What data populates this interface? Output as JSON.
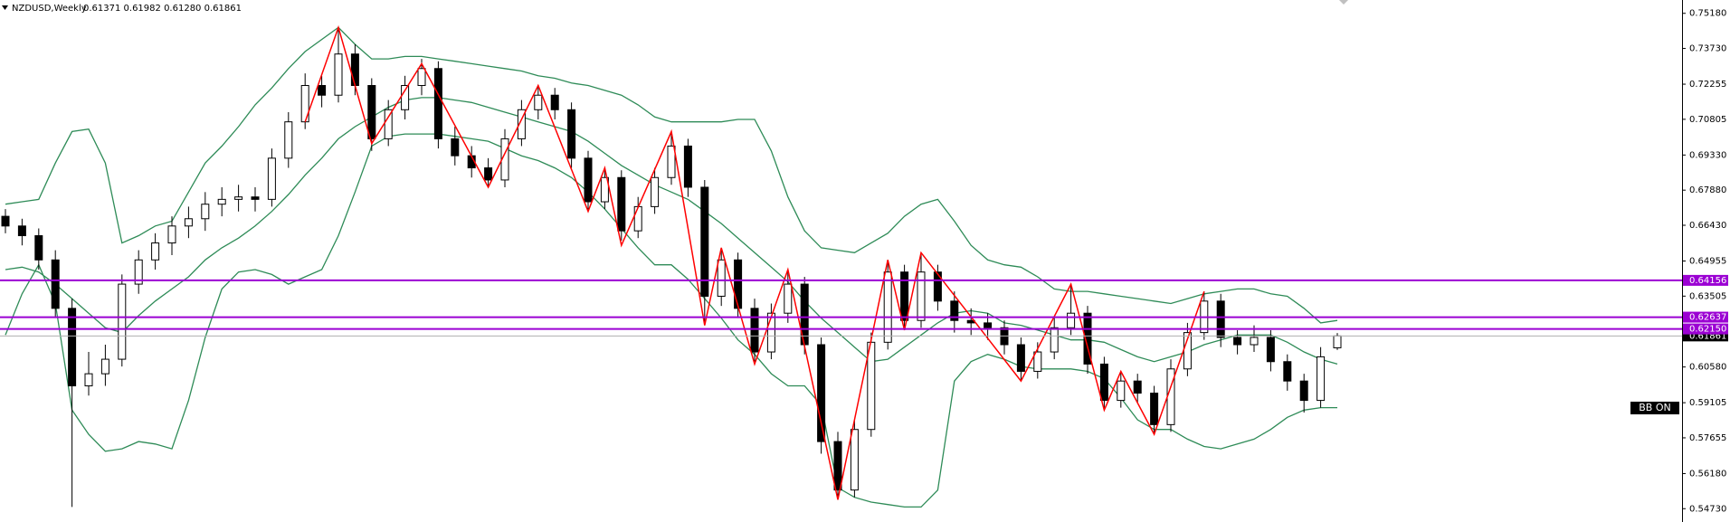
{
  "header": {
    "symbol": "NZDUSD,Weekly",
    "ohlc": "0.61371 0.61982 0.61280 0.61861"
  },
  "chart_data": {
    "type": "candlestick",
    "categories": [
      null,
      null,
      null,
      null,
      null,
      null,
      null,
      null,
      null,
      null,
      null,
      null,
      null,
      null,
      null,
      null,
      null,
      null,
      null,
      null,
      null,
      null,
      null,
      null,
      null,
      null,
      null,
      null,
      null,
      null,
      null,
      null,
      null,
      null,
      null,
      null,
      null,
      null,
      null,
      null,
      null,
      null,
      null,
      null,
      null,
      null,
      null,
      null,
      null,
      null,
      null,
      null,
      null,
      null,
      null,
      null,
      null,
      null,
      null,
      null,
      null,
      null,
      null,
      null,
      null,
      null,
      null,
      null,
      null,
      null,
      null,
      null,
      null,
      null,
      null,
      null,
      null,
      null,
      null,
      null,
      null
    ],
    "open": [
      0.668,
      0.664,
      0.66,
      0.65,
      0.63,
      0.598,
      0.603,
      0.609,
      0.64,
      0.65,
      0.657,
      0.664,
      0.667,
      0.673,
      0.675,
      0.676,
      0.675,
      0.692,
      0.707,
      0.722,
      0.718,
      0.735,
      0.722,
      0.7,
      0.712,
      0.722,
      0.729,
      0.7,
      0.693,
      0.688,
      0.683,
      0.7,
      0.712,
      0.718,
      0.712,
      0.692,
      0.674,
      0.684,
      0.662,
      0.672,
      0.684,
      0.697,
      0.68,
      0.635,
      0.65,
      0.63,
      0.612,
      0.628,
      0.64,
      0.615,
      0.575,
      0.555,
      0.58,
      0.616,
      0.645,
      0.625,
      0.645,
      0.633,
      0.625,
      0.624,
      0.622,
      0.615,
      0.604,
      0.612,
      0.622,
      0.628,
      0.607,
      0.592,
      0.6,
      0.595,
      0.582,
      0.605,
      0.62,
      0.633,
      0.618,
      0.615,
      0.618,
      0.608,
      0.6,
      0.592,
      0.61371
    ],
    "high": [
      0.671,
      0.667,
      0.663,
      0.654,
      0.634,
      0.612,
      0.615,
      0.644,
      0.654,
      0.661,
      0.668,
      0.672,
      0.678,
      0.68,
      0.681,
      0.68,
      0.696,
      0.711,
      0.727,
      0.726,
      0.746,
      0.739,
      0.725,
      0.716,
      0.726,
      0.733,
      0.732,
      0.705,
      0.697,
      0.692,
      0.704,
      0.716,
      0.722,
      0.721,
      0.715,
      0.695,
      0.688,
      0.687,
      0.676,
      0.688,
      0.703,
      0.7,
      0.683,
      0.655,
      0.653,
      0.634,
      0.632,
      0.646,
      0.643,
      0.618,
      0.579,
      0.584,
      0.62,
      0.65,
      0.648,
      0.653,
      0.648,
      0.637,
      0.63,
      0.628,
      0.625,
      0.618,
      0.616,
      0.626,
      0.64,
      0.631,
      0.61,
      0.604,
      0.603,
      0.598,
      0.609,
      0.624,
      0.637,
      0.636,
      0.621,
      0.623,
      0.621,
      0.611,
      0.603,
      0.614,
      0.61982
    ],
    "low": [
      0.661,
      0.656,
      0.646,
      0.626,
      0.548,
      0.594,
      0.598,
      0.606,
      0.636,
      0.646,
      0.652,
      0.659,
      0.662,
      0.668,
      0.67,
      0.67,
      0.672,
      0.688,
      0.704,
      0.713,
      0.715,
      0.718,
      0.695,
      0.697,
      0.708,
      0.718,
      0.696,
      0.689,
      0.684,
      0.68,
      0.68,
      0.697,
      0.708,
      0.708,
      0.688,
      0.67,
      0.671,
      0.658,
      0.659,
      0.669,
      0.681,
      0.676,
      0.623,
      0.631,
      0.626,
      0.607,
      0.609,
      0.624,
      0.611,
      0.57,
      0.551,
      0.552,
      0.577,
      0.613,
      0.621,
      0.622,
      0.629,
      0.62,
      0.619,
      0.617,
      0.611,
      0.6,
      0.601,
      0.609,
      0.619,
      0.603,
      0.588,
      0.589,
      0.591,
      0.578,
      0.579,
      0.602,
      0.617,
      0.614,
      0.611,
      0.612,
      0.604,
      0.596,
      0.587,
      0.589,
      0.6128
    ],
    "close": [
      0.664,
      0.66,
      0.65,
      0.63,
      0.598,
      0.603,
      0.609,
      0.64,
      0.65,
      0.657,
      0.664,
      0.667,
      0.673,
      0.675,
      0.676,
      0.675,
      0.692,
      0.707,
      0.722,
      0.718,
      0.735,
      0.722,
      0.7,
      0.712,
      0.722,
      0.729,
      0.7,
      0.693,
      0.688,
      0.683,
      0.7,
      0.712,
      0.718,
      0.712,
      0.692,
      0.674,
      0.684,
      0.662,
      0.672,
      0.684,
      0.697,
      0.68,
      0.635,
      0.65,
      0.63,
      0.612,
      0.628,
      0.64,
      0.615,
      0.575,
      0.555,
      0.58,
      0.616,
      0.645,
      0.625,
      0.645,
      0.633,
      0.625,
      0.624,
      0.622,
      0.615,
      0.604,
      0.612,
      0.622,
      0.628,
      0.607,
      0.592,
      0.6,
      0.595,
      0.582,
      0.605,
      0.62,
      0.633,
      0.618,
      0.615,
      0.618,
      0.608,
      0.6,
      0.592,
      0.61,
      0.61861
    ],
    "up_color": "#ffffff",
    "down_color": "#000000",
    "bands": [
      {
        "color": "#2e8b57",
        "values": [
          0.673,
          0.674,
          0.675,
          0.69,
          0.703,
          0.704,
          0.69,
          0.657,
          0.66,
          0.664,
          0.666,
          0.678,
          0.69,
          0.697,
          0.705,
          0.714,
          0.721,
          0.729,
          0.736,
          0.741,
          0.746,
          0.739,
          0.733,
          0.733,
          0.734,
          0.734,
          0.733,
          0.732,
          0.731,
          0.73,
          0.729,
          0.728,
          0.726,
          0.725,
          0.723,
          0.722,
          0.72,
          0.718,
          0.714,
          0.709,
          0.707,
          0.707,
          0.707,
          0.707,
          0.708,
          0.708,
          0.695,
          0.676,
          0.662,
          0.655,
          0.654,
          0.653,
          0.657,
          0.661,
          0.668,
          0.673,
          0.675,
          0.666,
          0.656,
          0.65,
          0.648,
          0.647,
          0.643,
          0.638,
          0.637,
          0.637,
          0.636,
          0.635,
          0.634,
          0.633,
          0.632,
          0.634,
          0.636,
          0.637,
          0.638,
          0.638,
          0.636,
          0.635,
          0.63,
          0.624,
          0.625
        ]
      },
      {
        "color": "#2e8b57",
        "values": [
          0.646,
          0.647,
          0.645,
          0.64,
          0.634,
          0.628,
          0.622,
          0.62,
          0.627,
          0.633,
          0.638,
          0.643,
          0.65,
          0.655,
          0.659,
          0.664,
          0.67,
          0.677,
          0.685,
          0.692,
          0.7,
          0.705,
          0.709,
          0.713,
          0.716,
          0.717,
          0.717,
          0.716,
          0.715,
          0.713,
          0.711,
          0.709,
          0.707,
          0.705,
          0.703,
          0.699,
          0.694,
          0.689,
          0.685,
          0.681,
          0.678,
          0.675,
          0.67,
          0.665,
          0.659,
          0.653,
          0.647,
          0.641,
          0.633,
          0.626,
          0.62,
          0.614,
          0.608,
          0.609,
          0.614,
          0.619,
          0.624,
          0.628,
          0.629,
          0.628,
          0.624,
          0.623,
          0.621,
          0.619,
          0.617,
          0.617,
          0.616,
          0.613,
          0.61,
          0.608,
          0.61,
          0.612,
          0.615,
          0.617,
          0.619,
          0.619,
          0.619,
          0.616,
          0.612,
          0.609,
          0.607
        ]
      },
      {
        "color": "#2e8b57",
        "values": [
          0.619,
          0.636,
          0.648,
          0.632,
          0.588,
          0.578,
          0.571,
          0.572,
          0.575,
          0.574,
          0.572,
          0.592,
          0.618,
          0.638,
          0.645,
          0.646,
          0.644,
          0.64,
          0.643,
          0.646,
          0.66,
          0.678,
          0.697,
          0.701,
          0.702,
          0.702,
          0.702,
          0.701,
          0.7,
          0.699,
          0.696,
          0.693,
          0.691,
          0.688,
          0.684,
          0.678,
          0.671,
          0.663,
          0.655,
          0.648,
          0.648,
          0.642,
          0.634,
          0.626,
          0.617,
          0.611,
          0.603,
          0.598,
          0.598,
          0.59,
          0.556,
          0.552,
          0.55,
          0.549,
          0.548,
          0.548,
          0.555,
          0.6,
          0.608,
          0.611,
          0.609,
          0.606,
          0.605,
          0.605,
          0.605,
          0.604,
          0.601,
          0.593,
          0.584,
          0.58,
          0.58,
          0.576,
          0.573,
          0.572,
          0.574,
          0.576,
          0.58,
          0.585,
          0.588,
          0.589,
          0.589
        ]
      }
    ],
    "zigzag": {
      "color": "#ff0000",
      "x": [
        18,
        20,
        22,
        25,
        29,
        32,
        35,
        36,
        37,
        40,
        42,
        43,
        45,
        47,
        50,
        53,
        54,
        55,
        61,
        64,
        66,
        67,
        69,
        72
      ],
      "values": [
        0.707,
        0.746,
        0.698,
        0.731,
        0.68,
        0.722,
        0.67,
        0.688,
        0.656,
        0.703,
        0.623,
        0.655,
        0.607,
        0.646,
        0.551,
        0.65,
        0.621,
        0.653,
        0.6,
        0.64,
        0.588,
        0.604,
        0.578,
        0.637
      ]
    },
    "levels": {
      "color": "#9b00d3",
      "values": [
        0.64156,
        0.62637,
        {
          "value": 0.6215,
          "label": "0.62150"
        }
      ]
    },
    "ylim": [
      0.5418,
      0.7573
    ],
    "yticks": [
      {
        "value": 0.7518,
        "label": "0.75180"
      },
      {
        "value": 0.7373,
        "label": "0.73730"
      },
      0.72255,
      0.70805,
      {
        "value": 0.6933,
        "label": "0.69330"
      },
      {
        "value": 0.6788,
        "label": "0.67880"
      },
      {
        "value": 0.6643,
        "label": "0.66430"
      },
      0.64955,
      0.63505,
      {
        "value": 0.6058,
        "label": "0.60580"
      },
      0.59105,
      0.57655,
      {
        "value": 0.5618,
        "label": "0.56180"
      },
      {
        "value": 0.5473,
        "label": "0.54730"
      }
    ],
    "indicator_label": "BB ON"
  }
}
